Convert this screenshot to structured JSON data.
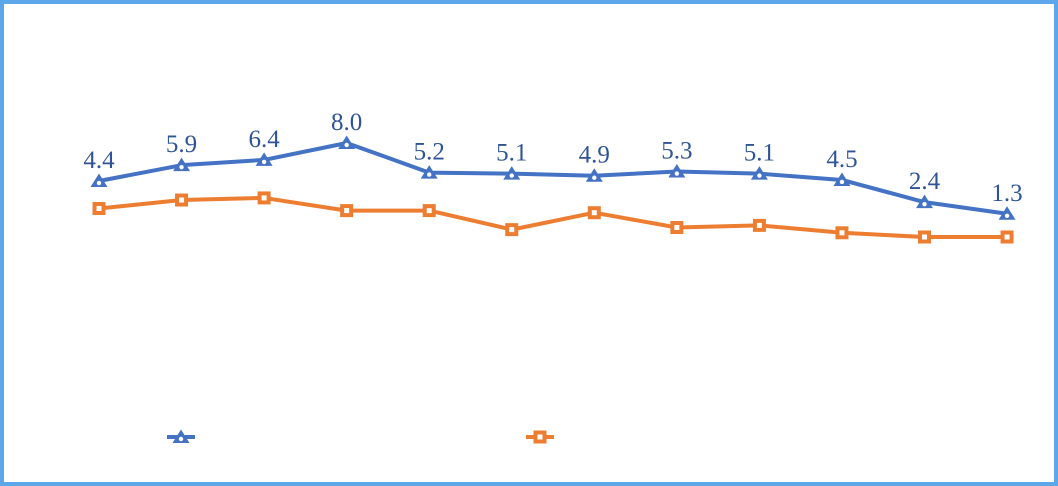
{
  "frame": {
    "background": "#FFFFFF",
    "border_color": "#5BA7E9"
  },
  "chart_data": {
    "type": "line",
    "title": "",
    "xlabel": "",
    "ylabel": "",
    "points_per_series": 12,
    "axes_visible": false,
    "gridlines": false,
    "ylim_estimate": [
      -2,
      10
    ],
    "series": [
      {
        "id": "blue-triangle-series",
        "color": "#4472C4",
        "marker": "triangle",
        "marker_dot_color": "#FFFFFF",
        "values": [
          4.4,
          5.9,
          6.4,
          8.0,
          5.2,
          5.1,
          4.9,
          5.3,
          5.1,
          4.5,
          2.4,
          1.3
        ],
        "data_labels_visible": true,
        "data_labels": [
          "4.4",
          "5.9",
          "6.4",
          "8.0",
          "5.2",
          "5.1",
          "4.9",
          "5.3",
          "5.1",
          "4.5",
          "2.4",
          "1.3"
        ]
      },
      {
        "id": "orange-square-series",
        "color": "#ED7D31",
        "marker": "square",
        "marker_dot_color": "#FFFFFF",
        "values": [
          1.8,
          2.6,
          2.8,
          1.6,
          1.6,
          -0.2,
          1.4,
          0.0,
          0.2,
          -0.5,
          -0.9,
          -0.9
        ],
        "data_labels_visible": false,
        "data_labels": []
      }
    ],
    "data_label_color": "#2F5496",
    "legend": {
      "position": "bottom",
      "marker_only": true,
      "labels_visible": false
    }
  }
}
